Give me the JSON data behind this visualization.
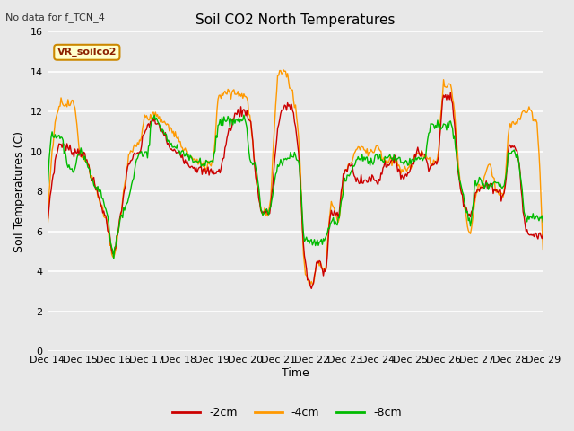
{
  "title": "Soil CO2 North Temperatures",
  "subtitle": "No data for f_TCN_4",
  "xlabel": "Time",
  "ylabel": "Soil Temperatures (C)",
  "legend_label": "VR_soilco2",
  "series_labels": [
    "-2cm",
    "-4cm",
    "-8cm"
  ],
  "series_colors": [
    "#cc0000",
    "#ff9900",
    "#00bb00"
  ],
  "ylim": [
    0,
    16
  ],
  "xtick_labels": [
    "Dec 14",
    "Dec 15",
    "Dec 16",
    "Dec 17",
    "Dec 18",
    "Dec 19",
    "Dec 20",
    "Dec 21",
    "Dec 22",
    "Dec 23",
    "Dec 24",
    "Dec 25",
    "Dec 26",
    "Dec 27",
    "Dec 28",
    "Dec 29"
  ],
  "bg_color": "#e8e8e8",
  "plot_bg_color": "#e8e8e8",
  "grid_color": "#ffffff",
  "yticks": [
    0,
    2,
    4,
    6,
    8,
    10,
    12,
    14,
    16
  ]
}
